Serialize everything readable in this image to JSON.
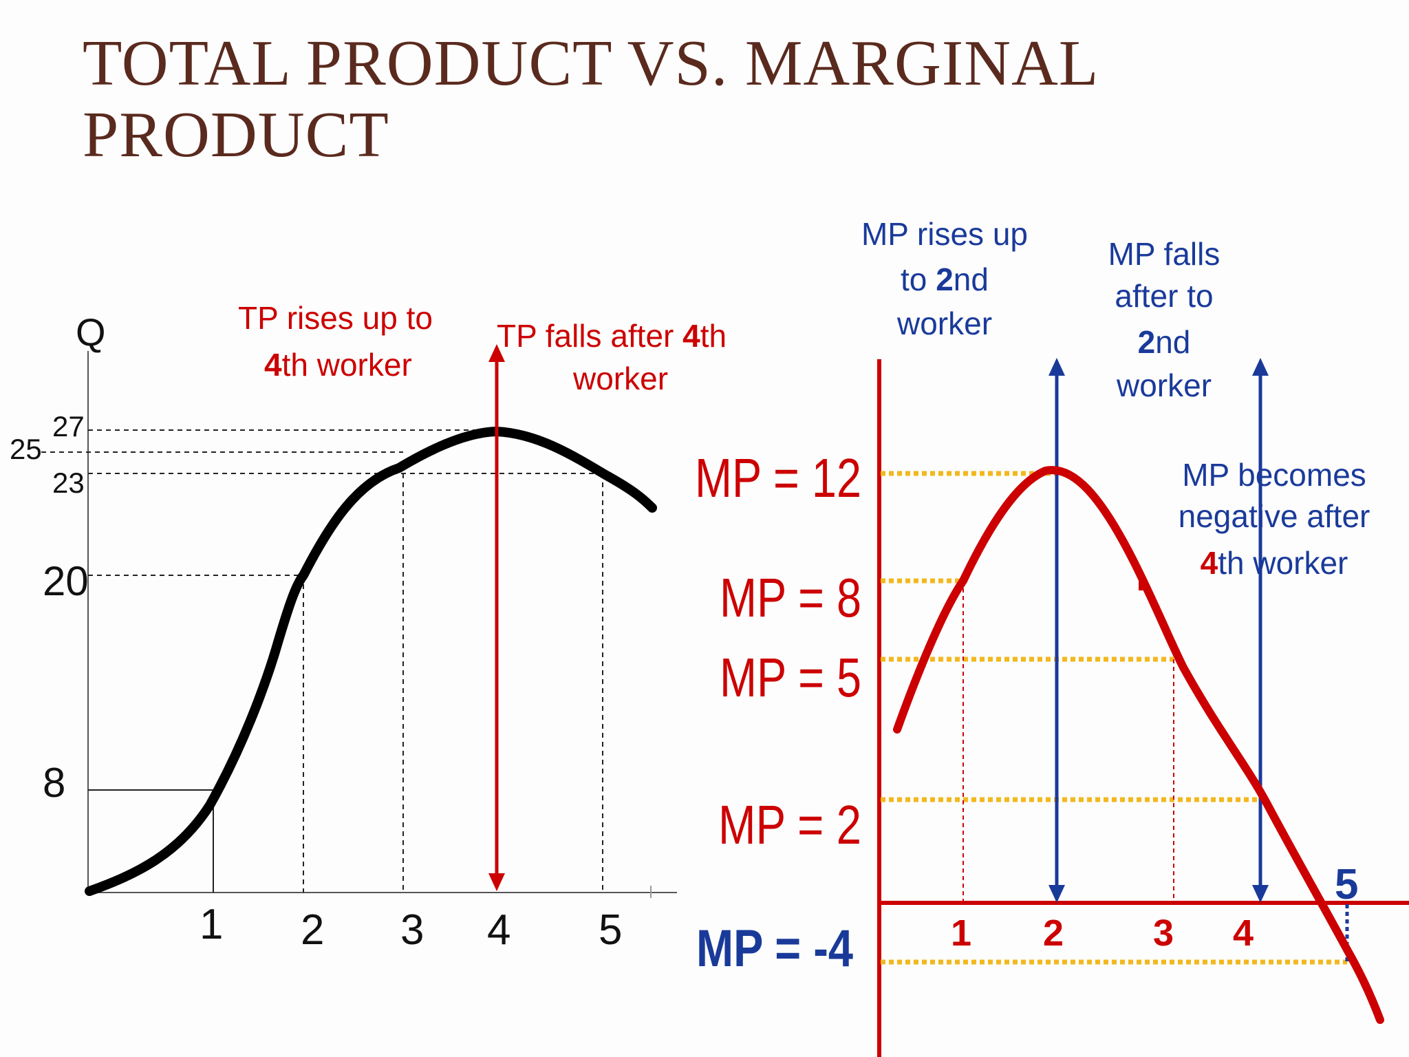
{
  "slide": {
    "title_line1": "TOTAL PRODUCT VS. MARGINAL",
    "title_line2": "PRODUCT"
  },
  "colors": {
    "title": "#5a2a1e",
    "tp_curve": "#000000",
    "mp_curve": "#cc0000",
    "arrow_red": "#cc0000",
    "arrow_blue": "#1a3a9a",
    "dotted_gold": "#f2b81e",
    "text_red": "#cc0000",
    "text_blue": "#1a3a9a"
  },
  "chart_data": [
    {
      "type": "line",
      "ylabel": "Q",
      "x": [
        0,
        1,
        2,
        3,
        4,
        5
      ],
      "y": [
        0,
        8,
        20,
        25,
        27,
        23
      ],
      "x_ticks": [
        "1",
        "2",
        "3",
        "4",
        "5"
      ],
      "y_ticks": [
        "8",
        "20",
        "23",
        "25",
        "27"
      ],
      "annotations": {
        "rise": {
          "pre": "TP rises up to",
          "bold": "4",
          "post": "th worker"
        },
        "fall": {
          "pre": "TP falls after ",
          "bold": "4",
          "post": "th",
          "line2": "worker"
        }
      }
    },
    {
      "type": "line",
      "x": [
        1,
        2,
        3,
        4,
        5
      ],
      "y": [
        8,
        12,
        5,
        2,
        -4
      ],
      "x_ticks": [
        "1",
        "2",
        "3",
        "4",
        "5"
      ],
      "y_labels": [
        "MP = 12",
        "MP = 8",
        "MP = 5",
        "MP = 2",
        "MP = -4"
      ],
      "annotations": {
        "rises": {
          "line1": "MP rises up",
          "line2_pre": "to ",
          "line2_bold": "2",
          "line2_post": "nd",
          "line3": "worker"
        },
        "falls": {
          "line1": "MP falls",
          "line2": "after to",
          "line3_bold": "2",
          "line3_post": "nd",
          "line4": "worker"
        },
        "negative": {
          "line1": "MP becomes",
          "line2": "negative after",
          "line3_bold": "4",
          "line3_post": "th worker"
        }
      }
    }
  ]
}
